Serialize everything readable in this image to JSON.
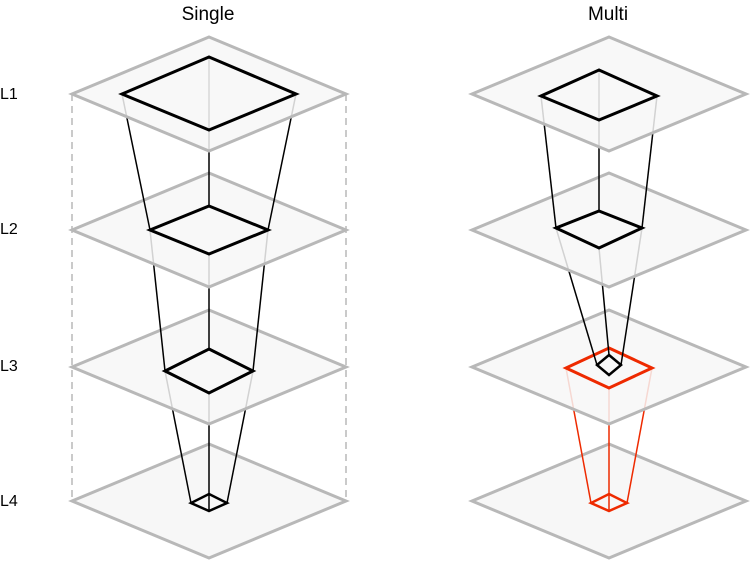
{
  "panels": {
    "left": {
      "title": "Single"
    },
    "right": {
      "title": "Multi"
    }
  },
  "layers": [
    {
      "label": "L1"
    },
    {
      "label": "L2"
    },
    {
      "label": "L3"
    },
    {
      "label": "L4"
    }
  ],
  "colors": {
    "plane_fill": "#f7f7f7",
    "plane_stroke": "#b8b8b8",
    "guide_dash": "#bdbdbd",
    "focus": "#000000",
    "highlight": "#ee2a00"
  }
}
